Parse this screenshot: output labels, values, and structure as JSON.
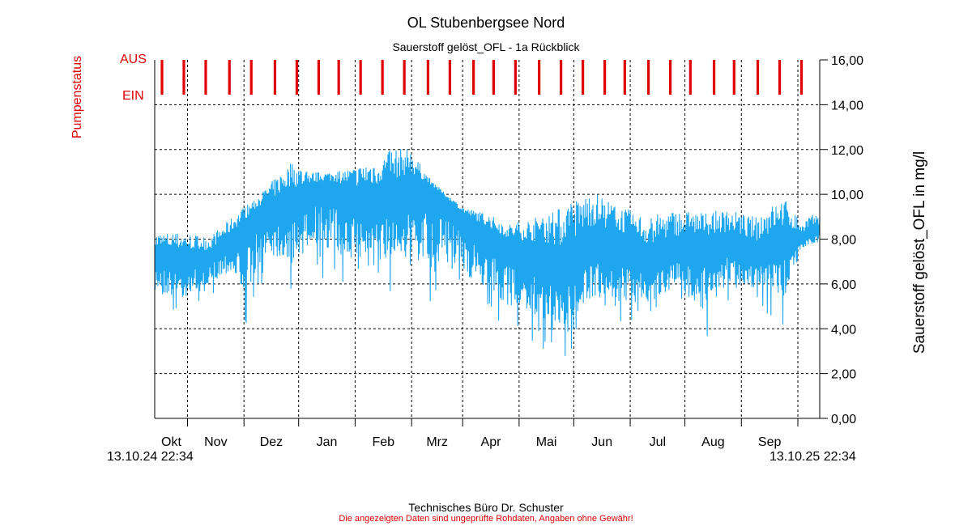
{
  "chart_data": {
    "type": "line",
    "title": "OL Stubenbergsee Nord",
    "subtitle": "Sauerstoff gelöst_OFL - 1a Rückblick",
    "ylabel": "Sauerstoff gelöst_OFL in mg/l",
    "ylim": [
      0,
      16
    ],
    "y_ticks": [
      "0,00",
      "2,00",
      "4,00",
      "6,00",
      "8,00",
      "10,00",
      "12,00",
      "14,00",
      "16,00"
    ],
    "x_start_label": "13.10.24 22:34",
    "x_end_label": "13.10.25 22:34",
    "months": [
      "Okt",
      "Nov",
      "Dez",
      "Jan",
      "Feb",
      "Mrz",
      "Apr",
      "Mai",
      "Jun",
      "Jul",
      "Aug",
      "Sep"
    ],
    "grid": true,
    "series": [
      {
        "name": "Sauerstoff gelöst_OFL",
        "color": "#1ea6ef",
        "x_days": [
          0,
          15,
          30,
          40,
          50,
          60,
          75,
          85,
          95,
          110,
          120,
          130,
          140,
          150,
          160,
          170,
          180,
          195,
          210,
          225,
          240,
          255,
          270,
          285,
          300,
          315,
          330,
          345,
          355,
          360,
          365
        ],
        "mean": [
          7.1,
          7.1,
          7.2,
          7.8,
          8.6,
          9.3,
          9.6,
          10.2,
          10.4,
          9.9,
          9.7,
          9.9,
          10.3,
          10.4,
          9.8,
          9.0,
          8.4,
          7.6,
          7.3,
          6.6,
          7.7,
          7.7,
          7.0,
          7.5,
          7.6,
          7.8,
          7.3,
          7.9,
          7.9,
          8.3,
          8.4
        ],
        "high": [
          8.3,
          8.3,
          8.1,
          8.8,
          9.5,
          10.2,
          11.5,
          11.0,
          11.0,
          11.2,
          11.6,
          12.0,
          12.1,
          10.8,
          10.0,
          9.4,
          9.2,
          8.7,
          9.0,
          9.5,
          10.2,
          9.5,
          9.0,
          9.3,
          9.2,
          9.3,
          9.0,
          9.9,
          8.8,
          9.1,
          9.0
        ],
        "low": [
          4.9,
          4.3,
          5.4,
          5.8,
          4.0,
          6.3,
          5.5,
          6.6,
          6.0,
          5.5,
          4.8,
          5.5,
          5.5,
          4.6,
          5.5,
          5.0,
          4.5,
          3.5,
          3.2,
          2.4,
          4.2,
          4.0,
          4.0,
          5.0,
          3.2,
          5.0,
          5.0,
          3.8,
          7.4,
          7.5,
          7.6
        ]
      }
    ],
    "pump_status": {
      "label": "Pumpenstatus",
      "on_label": "EIN",
      "off_label": "AUS",
      "color": "#e00000",
      "on_days": [
        4,
        16,
        28,
        41,
        53,
        66,
        78,
        90,
        101,
        113,
        125,
        137,
        150,
        162,
        175,
        186,
        198,
        211,
        223,
        235,
        247,
        258,
        271,
        283,
        294,
        307,
        318,
        331,
        343,
        355
      ]
    }
  },
  "footer": {
    "company": "Technisches Büro Dr. Schuster",
    "disclaimer": "Die angezeigten Daten sind ungeprüfte Rohdaten, Angaben ohne Gewähr!"
  }
}
